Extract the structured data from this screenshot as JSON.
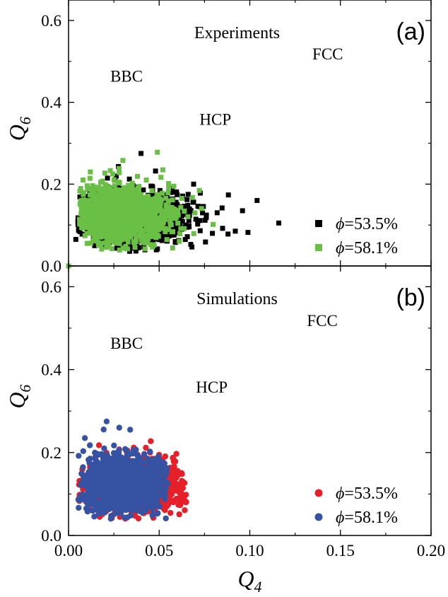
{
  "colors": {
    "exp_53_5": "#000000",
    "exp_58_1": "#6abf45",
    "sim_53_5": "#e62028",
    "sim_58_1": "#3652a3"
  },
  "chart_data": [
    {
      "type": "scatter",
      "panel_label": "(a)",
      "title": "Experiments",
      "xlabel": "",
      "ylabel": "Q6",
      "xlim": [
        0.0,
        0.2
      ],
      "ylim": [
        0.0,
        0.65
      ],
      "xticks": [
        "0.00",
        "0.05",
        "0.10",
        "0.15",
        "0.20"
      ],
      "yticks": [
        "0.0",
        "0.2",
        "0.4",
        "0.6"
      ],
      "show_xtick_labels": false,
      "marker": "square",
      "annotations": [
        {
          "text": "BBC",
          "x": 0.032,
          "y": 0.45
        },
        {
          "text": "HCP",
          "x": 0.081,
          "y": 0.345
        },
        {
          "text": "FCC",
          "x": 0.143,
          "y": 0.505
        }
      ],
      "legend_position": "lower-right",
      "series": [
        {
          "name": "ϕ=53.5%",
          "color": "#000000",
          "cloud": {
            "cx": 0.033,
            "cy": 0.12,
            "sx": 0.012,
            "sy": 0.033,
            "n": 1300,
            "xmin": 0.005,
            "xmax": 0.09,
            "ymin": 0.035,
            "ymax": 0.27
          },
          "outliers": [
            [
              0.104,
              0.16
            ],
            [
              0.116,
              0.105
            ],
            [
              0.092,
              0.085
            ],
            [
              0.099,
              0.082
            ],
            [
              0.088,
              0.078
            ],
            [
              0.085,
              0.092
            ],
            [
              0.096,
              0.135
            ],
            [
              0.06,
              0.15
            ],
            [
              0.066,
              0.175
            ],
            [
              0.057,
              0.19
            ],
            [
              0.04,
              0.275
            ],
            [
              0.048,
              0.232
            ],
            [
              0.069,
              0.2
            ],
            [
              0.082,
              0.13
            ],
            [
              0.076,
              0.118
            ],
            [
              0.004,
              0.065
            ]
          ]
        },
        {
          "name": "ϕ=58.1%",
          "color": "#6abf45",
          "cloud": {
            "cx": 0.028,
            "cy": 0.125,
            "sx": 0.011,
            "sy": 0.032,
            "n": 1500,
            "xmin": 0.006,
            "xmax": 0.08,
            "ymin": 0.035,
            "ymax": 0.26
          },
          "outliers": [
            [
              0.0,
              0.0
            ],
            [
              0.049,
              0.278
            ],
            [
              0.03,
              0.258
            ],
            [
              0.052,
              0.235
            ],
            [
              0.008,
              0.21
            ],
            [
              0.012,
              0.23
            ]
          ]
        }
      ]
    },
    {
      "type": "scatter",
      "panel_label": "(b)",
      "title": "Simulations",
      "xlabel": "Q4",
      "ylabel": "Q6",
      "xlim": [
        0.0,
        0.2
      ],
      "ylim": [
        0.0,
        0.65
      ],
      "xticks": [
        "0.00",
        "0.05",
        "0.10",
        "0.15",
        "0.20"
      ],
      "yticks": [
        "0.0",
        "0.2",
        "0.4",
        "0.6"
      ],
      "show_xtick_labels": true,
      "marker": "circle",
      "annotations": [
        {
          "text": "BBC",
          "x": 0.032,
          "y": 0.45
        },
        {
          "text": "HCP",
          "x": 0.079,
          "y": 0.345
        },
        {
          "text": "FCC",
          "x": 0.14,
          "y": 0.505
        }
      ],
      "legend_position": "lower-right",
      "series": [
        {
          "name": "ϕ=53.5%",
          "color": "#e62028",
          "cloud": {
            "cx": 0.033,
            "cy": 0.12,
            "sx": 0.011,
            "sy": 0.03,
            "n": 1200,
            "xmin": 0.005,
            "xmax": 0.065,
            "ymin": 0.04,
            "ymax": 0.25
          },
          "outliers": [
            [
              0.063,
              0.13
            ],
            [
              0.059,
              0.115
            ],
            [
              0.056,
              0.148
            ],
            [
              0.052,
              0.09
            ],
            [
              0.055,
              0.075
            ],
            [
              0.05,
              0.168
            ],
            [
              0.048,
              0.185
            ],
            [
              0.045,
              0.2
            ]
          ]
        },
        {
          "name": "ϕ=58.1%",
          "color": "#3652a3",
          "cloud": {
            "cx": 0.028,
            "cy": 0.125,
            "sx": 0.009,
            "sy": 0.033,
            "n": 1400,
            "xmin": 0.005,
            "xmax": 0.055,
            "ymin": 0.04,
            "ymax": 0.275
          },
          "outliers": [
            [
              0.021,
              0.275
            ],
            [
              0.028,
              0.26
            ],
            [
              0.034,
              0.255
            ],
            [
              0.009,
              0.235
            ]
          ]
        }
      ]
    }
  ]
}
